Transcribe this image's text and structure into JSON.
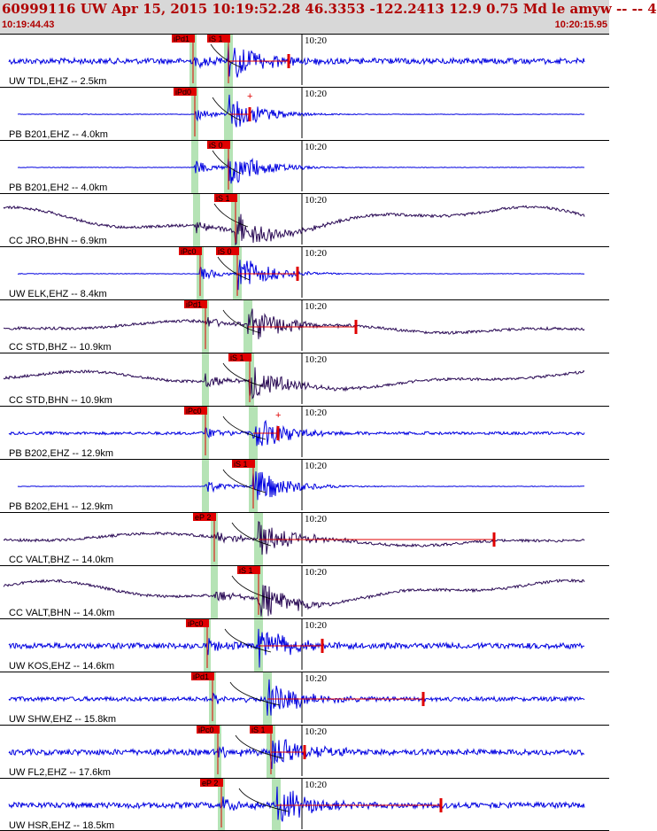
{
  "header": {
    "title": "60999116 UW Apr 15, 2015 10:19:52.28    46.3353 -122.2413 12.9 0.75 Md le amyw -- --    4",
    "time_start": "10:19:44.43",
    "time_end": "10:20:15.95"
  },
  "colors": {
    "header_bg": "#d8d8d8",
    "header_text": "#b00000",
    "trace_blue": "#0000e0",
    "trace_dark": "#2a0a55",
    "pick_red": "#e00000",
    "window_green": "#b5e3b5"
  },
  "time_label": "10:20",
  "traces": [
    {
      "label": "UW TDL,EHZ -- 2.5km",
      "color": "blue",
      "noise": "hf",
      "amp": 4,
      "p": 218,
      "s": 258,
      "pick_p": "iPd1",
      "pick_s": "iS 1",
      "coda": 326,
      "plus": ""
    },
    {
      "label": "PB B201,EHZ -- 4.0km",
      "color": "blue",
      "noise": "flat",
      "amp": 1,
      "p": 220,
      "s": 258,
      "pick_p": "iPd0",
      "pick_s": "",
      "coda": 282,
      "plus": "+"
    },
    {
      "label": "PB B201,EH2 -- 4.0km",
      "color": "blue",
      "noise": "flat",
      "amp": 1,
      "p": 220,
      "s": 258,
      "pick_p": "",
      "pick_s": "iS 0",
      "coda": null,
      "plus": ""
    },
    {
      "label": "CC JRO,BHN -- 6.9km",
      "color": "dark",
      "noise": "wave",
      "amp": 12,
      "p": 222,
      "s": 266,
      "pick_p": "",
      "pick_s": "iS 1",
      "coda": null,
      "plus": ""
    },
    {
      "label": "UW ELK,EHZ -- 8.4km",
      "color": "blue",
      "noise": "flat",
      "amp": 1,
      "p": 226,
      "s": 268,
      "pick_p": "iPc0",
      "pick_s": "iS 0",
      "coda": 336,
      "plus": ""
    },
    {
      "label": "CC STD,BHZ -- 10.9km",
      "color": "dark",
      "noise": "wave",
      "amp": 5,
      "p": 232,
      "s": 280,
      "pick_p": "iPd1",
      "pick_s": "",
      "coda": 402,
      "plus": ""
    },
    {
      "label": "CC STD,BHN -- 10.9km",
      "color": "dark",
      "noise": "wave",
      "amp": 7,
      "p": 232,
      "s": 282,
      "pick_p": "",
      "pick_s": "iS 1",
      "coda": null,
      "plus": ""
    },
    {
      "label": "PB B202,EHZ -- 12.9km",
      "color": "blue",
      "noise": "hf",
      "amp": 2,
      "p": 232,
      "s": 286,
      "pick_p": "iPc0",
      "pick_s": "",
      "coda": 314,
      "plus": "+"
    },
    {
      "label": "PB B202,EH1 -- 12.9km",
      "color": "blue",
      "noise": "flat",
      "amp": 1,
      "p": 232,
      "s": 286,
      "pick_p": "",
      "pick_s": "iS 1",
      "coda": null,
      "plus": ""
    },
    {
      "label": "CC VALT,BHZ -- 14.0km",
      "color": "dark",
      "noise": "wave",
      "amp": 5,
      "p": 242,
      "s": 292,
      "pick_p": "eP 2",
      "pick_s": "",
      "coda": 558,
      "plus": ""
    },
    {
      "label": "CC VALT,BHN -- 14.0km",
      "color": "dark",
      "noise": "wave",
      "amp": 10,
      "p": 242,
      "s": 292,
      "pick_p": "",
      "pick_s": "iS 1",
      "coda": null,
      "plus": ""
    },
    {
      "label": "UW KOS,EHZ -- 14.6km",
      "color": "blue",
      "noise": "hf",
      "amp": 4,
      "p": 234,
      "s": 292,
      "pick_p": "iPc0",
      "pick_s": "",
      "coda": 364,
      "plus": ""
    },
    {
      "label": "UW SHW,EHZ -- 15.8km",
      "color": "blue",
      "noise": "hf",
      "amp": 3,
      "p": 240,
      "s": 302,
      "pick_p": "iPd1",
      "pick_s": "",
      "coda": 478,
      "plus": ""
    },
    {
      "label": "UW FL2,EHZ -- 17.6km",
      "color": "blue",
      "noise": "hf",
      "amp": 4,
      "p": 246,
      "s": 306,
      "pick_p": "iPc0",
      "pick_s": "iS 1",
      "coda": 344,
      "plus": ""
    },
    {
      "label": "UW HSR,EHZ -- 18.5km",
      "color": "blue",
      "noise": "hf",
      "amp": 4,
      "p": 250,
      "s": 312,
      "pick_p": "eP 2",
      "pick_s": "",
      "coda": 498,
      "plus": ""
    }
  ]
}
